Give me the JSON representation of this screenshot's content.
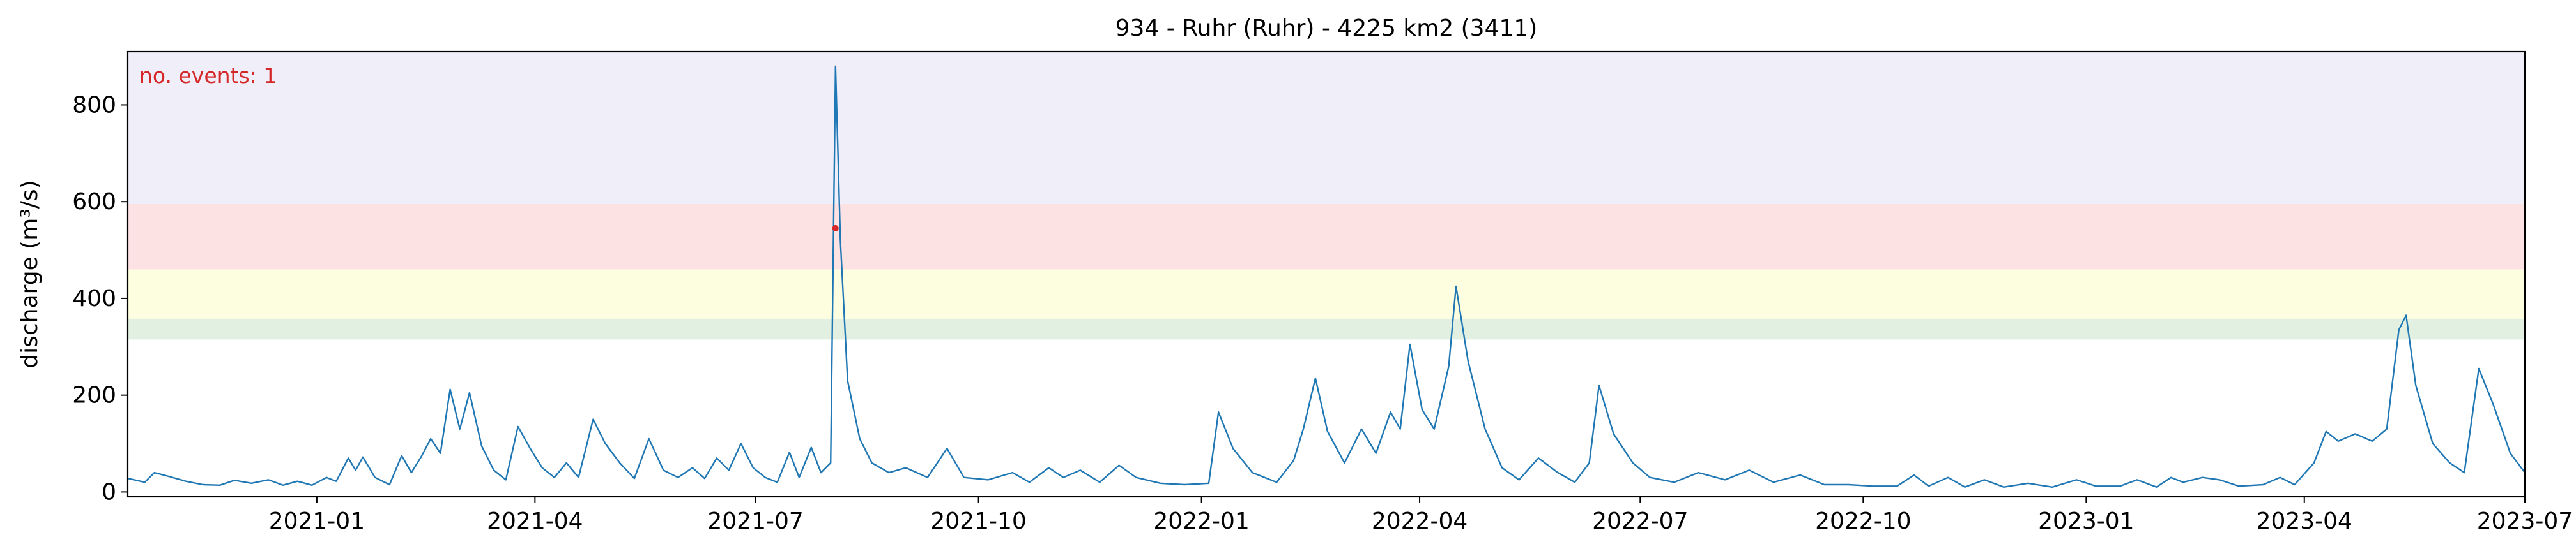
{
  "chart_data": {
    "type": "line",
    "title": "934 - Ruhr (Ruhr) - 4225 km2 (3411)",
    "xlabel": "",
    "ylabel": "discharge (m³/s)",
    "xlim": [
      "2020-10-15",
      "2023-07-01"
    ],
    "ylim": [
      -10,
      910
    ],
    "x_ticks": [
      "2021-01",
      "2021-04",
      "2021-07",
      "2021-10",
      "2022-01",
      "2022-04",
      "2022-07",
      "2022-10",
      "2023-01",
      "2023-04",
      "2023-07"
    ],
    "y_ticks": [
      0,
      200,
      400,
      600,
      800
    ],
    "grid": false,
    "legend": "none",
    "annotation": "no. events: 1",
    "threshold_bands": [
      {
        "from": 315,
        "to": 358,
        "color": "#e2f0e2"
      },
      {
        "from": 358,
        "to": 460,
        "color": "#fdfde0"
      },
      {
        "from": 460,
        "to": 595,
        "color": "#fde2e4"
      },
      {
        "from": 595,
        "to": 910,
        "color": "#f0eef9"
      }
    ],
    "series": [
      {
        "color": "#1f77b4",
        "points": [
          [
            "2020-10-15",
            28
          ],
          [
            "2020-10-22",
            20
          ],
          [
            "2020-10-26",
            40
          ],
          [
            "2020-11-01",
            32
          ],
          [
            "2020-11-08",
            22
          ],
          [
            "2020-11-15",
            15
          ],
          [
            "2020-11-22",
            14
          ],
          [
            "2020-11-28",
            24
          ],
          [
            "2020-12-05",
            18
          ],
          [
            "2020-12-12",
            25
          ],
          [
            "2020-12-18",
            14
          ],
          [
            "2020-12-24",
            22
          ],
          [
            "2020-12-30",
            14
          ],
          [
            "2021-01-05",
            30
          ],
          [
            "2021-01-09",
            22
          ],
          [
            "2021-01-14",
            70
          ],
          [
            "2021-01-17",
            45
          ],
          [
            "2021-01-20",
            72
          ],
          [
            "2021-01-25",
            30
          ],
          [
            "2021-01-31",
            15
          ],
          [
            "2021-02-05",
            75
          ],
          [
            "2021-02-09",
            40
          ],
          [
            "2021-02-13",
            72
          ],
          [
            "2021-02-17",
            110
          ],
          [
            "2021-02-21",
            80
          ],
          [
            "2021-02-25",
            212
          ],
          [
            "2021-03-01",
            130
          ],
          [
            "2021-03-05",
            205
          ],
          [
            "2021-03-10",
            95
          ],
          [
            "2021-03-15",
            45
          ],
          [
            "2021-03-20",
            25
          ],
          [
            "2021-03-25",
            135
          ],
          [
            "2021-03-30",
            90
          ],
          [
            "2021-04-04",
            50
          ],
          [
            "2021-04-09",
            30
          ],
          [
            "2021-04-14",
            60
          ],
          [
            "2021-04-19",
            30
          ],
          [
            "2021-04-25",
            150
          ],
          [
            "2021-04-30",
            100
          ],
          [
            "2021-05-06",
            60
          ],
          [
            "2021-05-12",
            28
          ],
          [
            "2021-05-18",
            110
          ],
          [
            "2021-05-24",
            45
          ],
          [
            "2021-05-30",
            30
          ],
          [
            "2021-06-05",
            50
          ],
          [
            "2021-06-10",
            28
          ],
          [
            "2021-06-15",
            70
          ],
          [
            "2021-06-20",
            45
          ],
          [
            "2021-06-25",
            100
          ],
          [
            "2021-06-30",
            50
          ],
          [
            "2021-07-05",
            30
          ],
          [
            "2021-07-10",
            20
          ],
          [
            "2021-07-15",
            82
          ],
          [
            "2021-07-19",
            30
          ],
          [
            "2021-07-24",
            92
          ],
          [
            "2021-07-28",
            40
          ],
          [
            "2021-08-01",
            60
          ],
          [
            "2021-08-03",
            880
          ],
          [
            "2021-08-05",
            520
          ],
          [
            "2021-08-08",
            230
          ],
          [
            "2021-08-13",
            110
          ],
          [
            "2021-08-18",
            60
          ],
          [
            "2021-08-25",
            40
          ],
          [
            "2021-09-01",
            50
          ],
          [
            "2021-09-10",
            30
          ],
          [
            "2021-09-18",
            90
          ],
          [
            "2021-09-25",
            30
          ],
          [
            "2021-10-05",
            25
          ],
          [
            "2021-10-15",
            40
          ],
          [
            "2021-10-22",
            20
          ],
          [
            "2021-10-30",
            50
          ],
          [
            "2021-11-05",
            30
          ],
          [
            "2021-11-12",
            45
          ],
          [
            "2021-11-20",
            20
          ],
          [
            "2021-11-28",
            55
          ],
          [
            "2021-12-05",
            30
          ],
          [
            "2021-12-15",
            18
          ],
          [
            "2021-12-25",
            15
          ],
          [
            "2022-01-04",
            18
          ],
          [
            "2022-01-08",
            165
          ],
          [
            "2022-01-14",
            90
          ],
          [
            "2022-01-22",
            40
          ],
          [
            "2022-02-01",
            20
          ],
          [
            "2022-02-08",
            65
          ],
          [
            "2022-02-12",
            130
          ],
          [
            "2022-02-17",
            235
          ],
          [
            "2022-02-22",
            125
          ],
          [
            "2022-03-01",
            60
          ],
          [
            "2022-03-08",
            130
          ],
          [
            "2022-03-14",
            80
          ],
          [
            "2022-03-20",
            165
          ],
          [
            "2022-03-24",
            130
          ],
          [
            "2022-03-28",
            305
          ],
          [
            "2022-04-02",
            170
          ],
          [
            "2022-04-07",
            130
          ],
          [
            "2022-04-13",
            260
          ],
          [
            "2022-04-16",
            425
          ],
          [
            "2022-04-21",
            270
          ],
          [
            "2022-04-28",
            130
          ],
          [
            "2022-05-05",
            50
          ],
          [
            "2022-05-12",
            25
          ],
          [
            "2022-05-20",
            70
          ],
          [
            "2022-05-28",
            40
          ],
          [
            "2022-06-04",
            20
          ],
          [
            "2022-06-10",
            60
          ],
          [
            "2022-06-14",
            220
          ],
          [
            "2022-06-20",
            120
          ],
          [
            "2022-06-28",
            60
          ],
          [
            "2022-07-05",
            30
          ],
          [
            "2022-07-15",
            20
          ],
          [
            "2022-07-25",
            40
          ],
          [
            "2022-08-05",
            25
          ],
          [
            "2022-08-15",
            45
          ],
          [
            "2022-08-25",
            20
          ],
          [
            "2022-09-05",
            35
          ],
          [
            "2022-09-15",
            15
          ],
          [
            "2022-09-25",
            15
          ],
          [
            "2022-10-05",
            12
          ],
          [
            "2022-10-15",
            12
          ],
          [
            "2022-10-22",
            35
          ],
          [
            "2022-10-28",
            12
          ],
          [
            "2022-11-05",
            30
          ],
          [
            "2022-11-12",
            10
          ],
          [
            "2022-11-20",
            25
          ],
          [
            "2022-11-28",
            10
          ],
          [
            "2022-12-08",
            18
          ],
          [
            "2022-12-18",
            10
          ],
          [
            "2022-12-28",
            25
          ],
          [
            "2023-01-05",
            12
          ],
          [
            "2023-01-15",
            12
          ],
          [
            "2023-01-22",
            25
          ],
          [
            "2023-01-30",
            10
          ],
          [
            "2023-02-05",
            30
          ],
          [
            "2023-02-10",
            20
          ],
          [
            "2023-02-18",
            30
          ],
          [
            "2023-02-25",
            25
          ],
          [
            "2023-03-05",
            12
          ],
          [
            "2023-03-15",
            15
          ],
          [
            "2023-03-22",
            30
          ],
          [
            "2023-03-28",
            15
          ],
          [
            "2023-04-05",
            60
          ],
          [
            "2023-04-10",
            125
          ],
          [
            "2023-04-15",
            105
          ],
          [
            "2023-04-22",
            120
          ],
          [
            "2023-04-29",
            105
          ],
          [
            "2023-05-05",
            130
          ],
          [
            "2023-05-10",
            335
          ],
          [
            "2023-05-13",
            365
          ],
          [
            "2023-05-17",
            220
          ],
          [
            "2023-05-24",
            100
          ],
          [
            "2023-05-31",
            60
          ],
          [
            "2023-06-06",
            40
          ],
          [
            "2023-06-12",
            255
          ],
          [
            "2023-06-18",
            180
          ],
          [
            "2023-06-25",
            80
          ],
          [
            "2023-07-01",
            40
          ]
        ]
      }
    ],
    "event_marker": {
      "x": "2021-08-03",
      "y": 545,
      "color": "#d62728"
    }
  }
}
